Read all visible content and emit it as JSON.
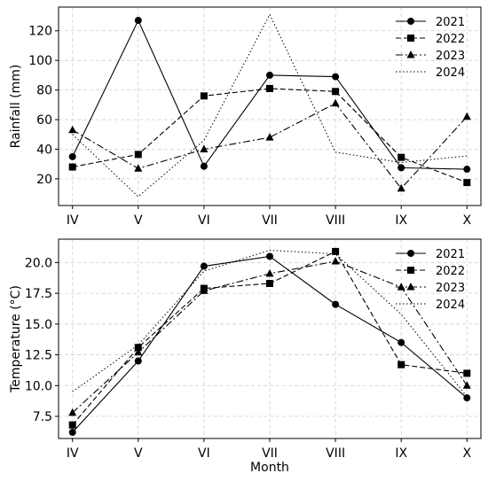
{
  "chart_data": [
    {
      "type": "line",
      "title": "",
      "xlabel": "",
      "ylabel": "Rainfall (mm)",
      "categories": [
        "IV",
        "V",
        "VI",
        "VII",
        "VIII",
        "IX",
        "X"
      ],
      "ylim": [
        2,
        136
      ],
      "yticks": [
        20,
        40,
        60,
        80,
        100,
        120
      ],
      "ytick_labels": [
        "20",
        "40",
        "60",
        "80",
        "100",
        "120"
      ],
      "grid": true,
      "legend": "top-right",
      "series": [
        {
          "name": "2021",
          "values": [
            35,
            127,
            28.5,
            90,
            89,
            27.5,
            26.5
          ],
          "marker": "circle",
          "dash": "solid"
        },
        {
          "name": "2022",
          "values": [
            28,
            36.5,
            76,
            81,
            79,
            34.5,
            17.5
          ],
          "marker": "square",
          "dash": "dashed"
        },
        {
          "name": "2023",
          "values": [
            53,
            27,
            40,
            48,
            71,
            13.5,
            62
          ],
          "marker": "triangle",
          "dash": "dashdot"
        },
        {
          "name": "2024",
          "values": [
            50,
            8,
            46,
            131,
            38,
            31,
            35.5
          ],
          "marker": "none",
          "dash": "dotted"
        }
      ]
    },
    {
      "type": "line",
      "title": "",
      "xlabel": "Month",
      "ylabel": "Temperature (°C)",
      "categories": [
        "IV",
        "V",
        "VI",
        "VII",
        "VIII",
        "IX",
        "X"
      ],
      "ylim": [
        5.7,
        21.9
      ],
      "yticks": [
        7.5,
        10.0,
        12.5,
        15.0,
        17.5,
        20.0
      ],
      "ytick_labels": [
        "7.5",
        "10.0",
        "12.5",
        "15.0",
        "17.5",
        "20.0"
      ],
      "grid": true,
      "legend": "top-right",
      "series": [
        {
          "name": "2021",
          "values": [
            6.2,
            12.0,
            19.7,
            20.5,
            16.6,
            13.5,
            9.0
          ],
          "marker": "circle",
          "dash": "solid"
        },
        {
          "name": "2022",
          "values": [
            6.8,
            13.1,
            17.9,
            18.3,
            20.9,
            11.7,
            11.0
          ],
          "marker": "square",
          "dash": "dashed"
        },
        {
          "name": "2023",
          "values": [
            7.8,
            12.7,
            17.7,
            19.1,
            20.1,
            18.0,
            10.0
          ],
          "marker": "triangle",
          "dash": "dashdot"
        },
        {
          "name": "2024",
          "values": [
            9.5,
            13.3,
            19.3,
            21.0,
            20.7,
            15.8,
            9.1
          ],
          "marker": "none",
          "dash": "dotted"
        }
      ]
    }
  ]
}
